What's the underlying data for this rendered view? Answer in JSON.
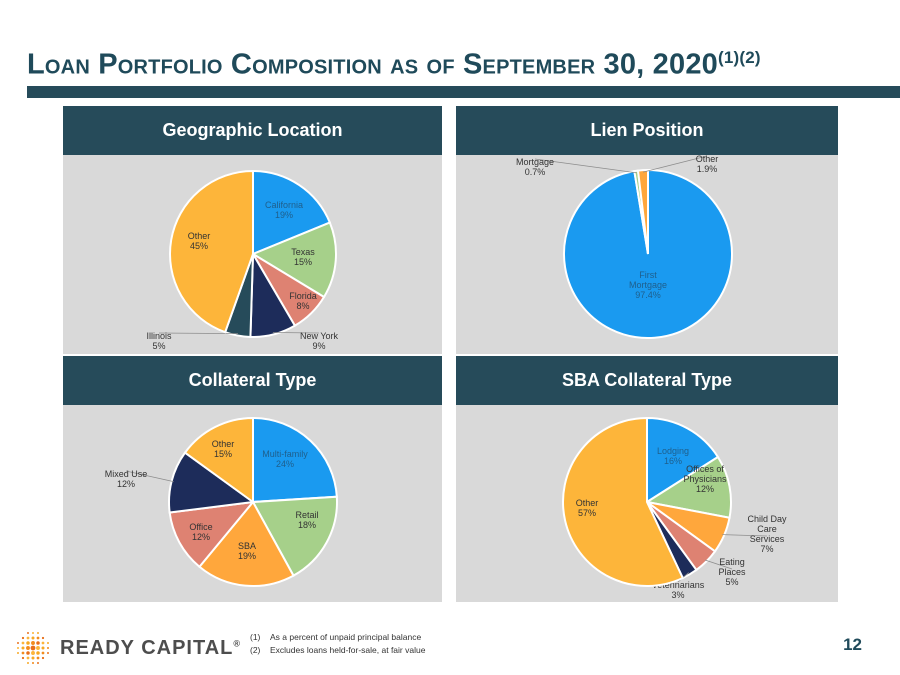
{
  "title": {
    "main": "Loan Portfolio Composition as of September 30, 2020",
    "superscript": "(1)(2)"
  },
  "brand": {
    "name": "READY CAPITAL",
    "mark": "®"
  },
  "footnotes": [
    {
      "num": "(1)",
      "text": "As a percent of unpaid principal balance"
    },
    {
      "num": "(2)",
      "text": "Excludes loans held-for-sale, at fair value"
    }
  ],
  "page_number": "12",
  "colors": {
    "header_bg": "#264b5a",
    "panel_bg": "#d9d9d9",
    "blue": "#1a9af0",
    "green": "#a6d08a",
    "salmon": "#de8272",
    "navy": "#1d2c5a",
    "orange": "#ffa73c",
    "gold": "#fdb53a"
  },
  "chart_data": [
    {
      "type": "pie",
      "title": "Geographic Location",
      "slices": [
        {
          "label": "California",
          "pct_label": "19%",
          "value": 19,
          "color": "#1a9af0",
          "text_color": "#1f5f8c"
        },
        {
          "label": "Texas",
          "pct_label": "15%",
          "value": 15,
          "color": "#a6d08a",
          "text_color": "#333333"
        },
        {
          "label": "Florida",
          "pct_label": "8%",
          "value": 8,
          "color": "#de8272",
          "text_color": "#333333"
        },
        {
          "label": "New York",
          "pct_label": "9%",
          "value": 9,
          "color": "#1d2c5a",
          "text_color": "#333333"
        },
        {
          "label": "Illinois",
          "pct_label": "5%",
          "value": 5,
          "color": "#264b5a",
          "text_color": "#333333"
        },
        {
          "label": "Other",
          "pct_label": "45%",
          "value": 45,
          "color": "#fdb53a",
          "text_color": "#333333"
        }
      ]
    },
    {
      "type": "pie",
      "title": "Lien Position",
      "slices": [
        {
          "label": "First Mortgage",
          "pct_label": "97.4%",
          "value": 97.4,
          "color": "#1a9af0",
          "text_color": "#1f5f8c"
        },
        {
          "label": "Subordinated Mortgage",
          "pct_label": "0.7%",
          "value": 0.7,
          "color": "#a6d08a",
          "text_color": "#333333"
        },
        {
          "label": "Other",
          "pct_label": "1.9%",
          "value": 1.9,
          "color": "#ffa73c",
          "text_color": "#333333"
        }
      ]
    },
    {
      "type": "pie",
      "title": "Collateral Type",
      "slices": [
        {
          "label": "Multi-family",
          "pct_label": "24%",
          "value": 24,
          "color": "#1a9af0",
          "text_color": "#1f5f8c"
        },
        {
          "label": "Retail",
          "pct_label": "18%",
          "value": 18,
          "color": "#a6d08a",
          "text_color": "#333333"
        },
        {
          "label": "SBA",
          "pct_label": "19%",
          "value": 19,
          "color": "#ffa73c",
          "text_color": "#333333"
        },
        {
          "label": "Office",
          "pct_label": "12%",
          "value": 12,
          "color": "#de8272",
          "text_color": "#333333"
        },
        {
          "label": "Mixed Use",
          "pct_label": "12%",
          "value": 12,
          "color": "#1d2c5a",
          "text_color": "#333333"
        },
        {
          "label": "Other",
          "pct_label": "15%",
          "value": 15,
          "color": "#fdb53a",
          "text_color": "#333333"
        }
      ]
    },
    {
      "type": "pie",
      "title": "SBA Collateral Type",
      "slices": [
        {
          "label": "Lodging",
          "pct_label": "16%",
          "value": 16,
          "color": "#1a9af0",
          "text_color": "#1f5f8c"
        },
        {
          "label": "Offices of Physicians",
          "pct_label": "12%",
          "value": 12,
          "color": "#a6d08a",
          "text_color": "#333333"
        },
        {
          "label": "Child Day Care Services",
          "pct_label": "7%",
          "value": 7,
          "color": "#ffa73c",
          "text_color": "#333333"
        },
        {
          "label": "Eating Places",
          "pct_label": "5%",
          "value": 5,
          "color": "#de8272",
          "text_color": "#333333"
        },
        {
          "label": "Veterinarians",
          "pct_label": "3%",
          "value": 3,
          "color": "#1d2c5a",
          "text_color": "#333333"
        },
        {
          "label": "Other",
          "pct_label": "57%",
          "value": 57,
          "color": "#fdb53a",
          "text_color": "#333333"
        }
      ]
    }
  ]
}
